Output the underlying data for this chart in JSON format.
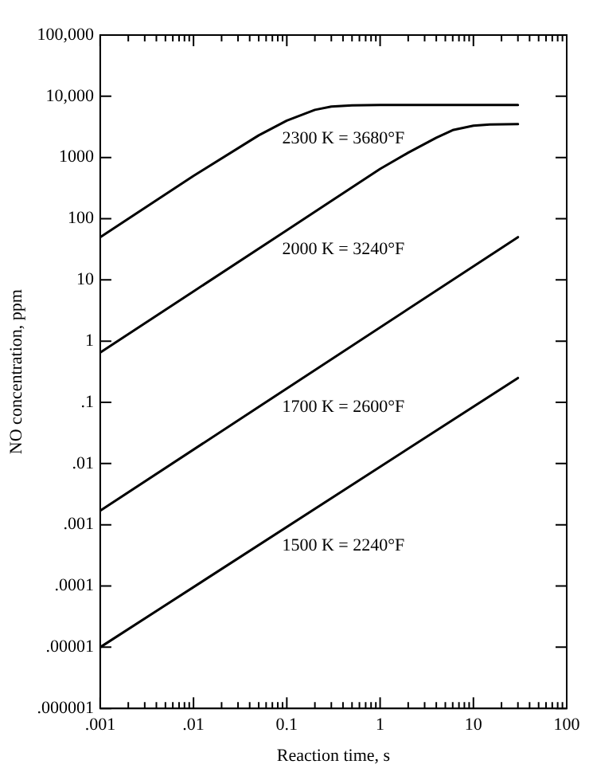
{
  "chart_data": {
    "type": "line",
    "xlabel": "Reaction time, s",
    "ylabel": "NO concentration, ppm",
    "log": "xy",
    "grid": false,
    "legend": false,
    "marker": "none",
    "line_style": "solid",
    "xlim": [
      0.001,
      100
    ],
    "xticks": [
      {
        "value": 0.001,
        "label": ".001"
      },
      {
        "value": 0.002,
        "label": null
      },
      {
        "value": 0.003,
        "label": null
      },
      {
        "value": 0.004,
        "label": null
      },
      {
        "value": 0.005,
        "label": null
      },
      {
        "value": 0.006,
        "label": null
      },
      {
        "value": 0.007,
        "label": null
      },
      {
        "value": 0.008,
        "label": null
      },
      {
        "value": 0.009,
        "label": null
      },
      {
        "value": 0.01,
        "label": ".01"
      },
      {
        "value": 0.02,
        "label": null
      },
      {
        "value": 0.03,
        "label": null
      },
      {
        "value": 0.04,
        "label": null
      },
      {
        "value": 0.05,
        "label": null
      },
      {
        "value": 0.06,
        "label": null
      },
      {
        "value": 0.07,
        "label": null
      },
      {
        "value": 0.08,
        "label": null
      },
      {
        "value": 0.09,
        "label": null
      },
      {
        "value": 0.1,
        "label": "0.1"
      },
      {
        "value": 0.2,
        "label": null
      },
      {
        "value": 0.3,
        "label": null
      },
      {
        "value": 0.4,
        "label": null
      },
      {
        "value": 0.5,
        "label": null
      },
      {
        "value": 0.6,
        "label": null
      },
      {
        "value": 0.7,
        "label": null
      },
      {
        "value": 0.8,
        "label": null
      },
      {
        "value": 0.9,
        "label": null
      },
      1,
      {
        "value": 2,
        "label": null
      },
      {
        "value": 3,
        "label": null
      },
      {
        "value": 4,
        "label": null
      },
      {
        "value": 5,
        "label": null
      },
      {
        "value": 6,
        "label": null
      },
      {
        "value": 7,
        "label": null
      },
      {
        "value": 8,
        "label": null
      },
      {
        "value": 9,
        "label": null
      },
      10,
      {
        "value": 20,
        "label": null
      },
      {
        "value": 30,
        "label": null
      },
      {
        "value": 40,
        "label": null
      },
      {
        "value": 50,
        "label": null
      },
      {
        "value": 60,
        "label": null
      },
      {
        "value": 70,
        "label": null
      },
      {
        "value": 80,
        "label": null
      },
      {
        "value": 90,
        "label": null
      },
      100
    ],
    "ylim": [
      1e-06,
      100000
    ],
    "yticks": [
      {
        "value": 1e-06,
        "label": ".000001"
      },
      {
        "value": 1e-05,
        "label": ".00001"
      },
      {
        "value": 0.0001,
        "label": ".0001"
      },
      {
        "value": 0.001,
        "label": ".001"
      },
      {
        "value": 0.01,
        "label": ".01"
      },
      {
        "value": 0.1,
        "label": ".1"
      },
      1,
      10,
      100,
      1000,
      {
        "value": 10000,
        "label": "10,000"
      },
      {
        "value": 100000,
        "label": "100,000"
      }
    ],
    "series": [
      {
        "name": "2300 K = 3680°F",
        "color": "#000000",
        "x": [
          0.001,
          0.01,
          0.05,
          0.1,
          0.2,
          0.3,
          0.5,
          1,
          30
        ],
        "values": [
          50,
          500,
          2300,
          4000,
          6000,
          6800,
          7100,
          7200,
          7200
        ]
      },
      {
        "name": "2000 K = 3240°F",
        "color": "#000000",
        "x": [
          0.001,
          0.01,
          0.1,
          1,
          2,
          4,
          6,
          10,
          15,
          30
        ],
        "values": [
          0.65,
          6.5,
          65,
          650,
          1200,
          2100,
          2800,
          3300,
          3450,
          3500
        ]
      },
      {
        "name": "1700 K = 2600°F",
        "color": "#000000",
        "x": [
          0.001,
          30
        ],
        "values": [
          0.0017,
          50
        ]
      },
      {
        "name": "1500 K = 2240°F",
        "color": "#000000",
        "x": [
          0.001,
          30
        ],
        "values": [
          1e-05,
          0.25
        ]
      }
    ]
  }
}
